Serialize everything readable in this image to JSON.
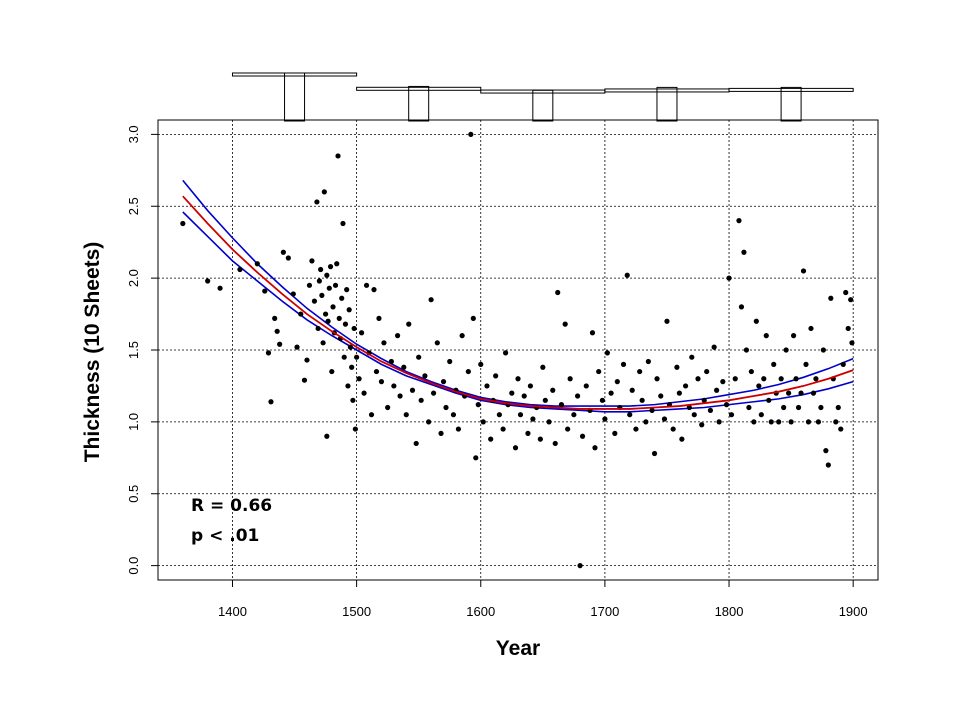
{
  "chart_data": {
    "type": "scatter",
    "xlabel": "Year",
    "ylabel": "Thickness (10 Sheets)",
    "xlim": [
      1340,
      1920
    ],
    "ylim": [
      -0.1,
      3.1
    ],
    "x_ticks": [
      1400,
      1500,
      1600,
      1700,
      1800,
      1900
    ],
    "y_ticks": [
      0.0,
      0.5,
      1.0,
      1.5,
      2.0,
      2.5,
      3.0
    ],
    "y_tick_labels": [
      "0.0",
      "0.5",
      "1.0",
      "1.5",
      "2.0",
      "2.5",
      "3.0"
    ],
    "grid": true,
    "annotations": [
      "R = 0.66",
      "p < .01"
    ],
    "point_color": "#000000",
    "fit_color": "#cc0000",
    "ci_color": "#0000cc",
    "fit_line": {
      "x": [
        1360,
        1380,
        1400,
        1420,
        1440,
        1460,
        1480,
        1500,
        1520,
        1540,
        1560,
        1580,
        1600,
        1620,
        1640,
        1660,
        1680,
        1700,
        1720,
        1740,
        1760,
        1780,
        1800,
        1820,
        1840,
        1860,
        1880,
        1900
      ],
      "y": [
        2.57,
        2.38,
        2.2,
        2.04,
        1.89,
        1.75,
        1.63,
        1.52,
        1.42,
        1.34,
        1.27,
        1.21,
        1.16,
        1.13,
        1.11,
        1.1,
        1.09,
        1.09,
        1.09,
        1.1,
        1.11,
        1.13,
        1.15,
        1.18,
        1.21,
        1.25,
        1.3,
        1.36
      ]
    },
    "ci_upper": {
      "x": [
        1360,
        1380,
        1400,
        1420,
        1440,
        1460,
        1480,
        1500,
        1520,
        1540,
        1560,
        1580,
        1600,
        1620,
        1640,
        1660,
        1680,
        1700,
        1720,
        1740,
        1760,
        1780,
        1800,
        1820,
        1840,
        1860,
        1880,
        1900
      ],
      "y": [
        2.68,
        2.47,
        2.28,
        2.1,
        1.94,
        1.79,
        1.66,
        1.54,
        1.44,
        1.35,
        1.28,
        1.22,
        1.17,
        1.14,
        1.12,
        1.11,
        1.11,
        1.11,
        1.11,
        1.12,
        1.14,
        1.16,
        1.19,
        1.22,
        1.26,
        1.31,
        1.37,
        1.44
      ]
    },
    "ci_lower": {
      "x": [
        1360,
        1380,
        1400,
        1420,
        1440,
        1460,
        1480,
        1500,
        1520,
        1540,
        1560,
        1580,
        1600,
        1620,
        1640,
        1660,
        1680,
        1700,
        1720,
        1740,
        1760,
        1780,
        1800,
        1820,
        1840,
        1860,
        1880,
        1900
      ],
      "y": [
        2.46,
        2.29,
        2.12,
        1.98,
        1.84,
        1.71,
        1.6,
        1.5,
        1.4,
        1.32,
        1.26,
        1.2,
        1.15,
        1.12,
        1.1,
        1.09,
        1.08,
        1.07,
        1.07,
        1.08,
        1.09,
        1.1,
        1.12,
        1.14,
        1.16,
        1.19,
        1.23,
        1.28
      ]
    },
    "top_bins": {
      "comment_free": true,
      "edges": [
        [
          1400,
          1500
        ],
        [
          1500,
          1600
        ],
        [
          1600,
          1700
        ],
        [
          1700,
          1800
        ],
        [
          1800,
          1900
        ]
      ],
      "centers": [
        1450,
        1550,
        1650,
        1750,
        1850
      ],
      "level": [
        1.0,
        0.74,
        0.69,
        0.71,
        0.72
      ],
      "bar_height": [
        1.0,
        0.72,
        0.64,
        0.7,
        0.7
      ]
    },
    "points": [
      [
        1360,
        2.38
      ],
      [
        1380,
        1.98
      ],
      [
        1390,
        1.93
      ],
      [
        1406,
        2.06
      ],
      [
        1420,
        2.1
      ],
      [
        1426,
        1.91
      ],
      [
        1429,
        1.48
      ],
      [
        1431,
        1.14
      ],
      [
        1434,
        1.72
      ],
      [
        1436,
        1.63
      ],
      [
        1438,
        1.54
      ],
      [
        1441,
        2.18
      ],
      [
        1445,
        2.14
      ],
      [
        1449,
        1.89
      ],
      [
        1452,
        1.52
      ],
      [
        1455,
        1.75
      ],
      [
        1458,
        1.29
      ],
      [
        1460,
        1.43
      ],
      [
        1462,
        1.95
      ],
      [
        1464,
        2.12
      ],
      [
        1466,
        1.84
      ],
      [
        1468,
        2.53
      ],
      [
        1469,
        1.65
      ],
      [
        1470,
        1.98
      ],
      [
        1471,
        2.06
      ],
      [
        1472,
        1.88
      ],
      [
        1473,
        1.55
      ],
      [
        1474,
        2.6
      ],
      [
        1475,
        1.75
      ],
      [
        1476,
        2.02
      ],
      [
        1476,
        0.9
      ],
      [
        1477,
        1.7
      ],
      [
        1478,
        1.93
      ],
      [
        1479,
        2.08
      ],
      [
        1480,
        1.35
      ],
      [
        1481,
        1.8
      ],
      [
        1482,
        1.62
      ],
      [
        1483,
        1.95
      ],
      [
        1484,
        2.1
      ],
      [
        1485,
        2.85
      ],
      [
        1486,
        1.72
      ],
      [
        1487,
        1.58
      ],
      [
        1488,
        1.86
      ],
      [
        1489,
        2.38
      ],
      [
        1490,
        1.45
      ],
      [
        1491,
        1.68
      ],
      [
        1492,
        1.92
      ],
      [
        1493,
        1.25
      ],
      [
        1494,
        1.78
      ],
      [
        1495,
        1.52
      ],
      [
        1496,
        1.38
      ],
      [
        1497,
        1.15
      ],
      [
        1498,
        1.65
      ],
      [
        1499,
        0.95
      ],
      [
        1500,
        1.45
      ],
      [
        1502,
        1.3
      ],
      [
        1504,
        1.62
      ],
      [
        1506,
        1.2
      ],
      [
        1508,
        1.95
      ],
      [
        1510,
        1.48
      ],
      [
        1512,
        1.05
      ],
      [
        1514,
        1.92
      ],
      [
        1516,
        1.35
      ],
      [
        1518,
        1.72
      ],
      [
        1520,
        1.28
      ],
      [
        1522,
        1.55
      ],
      [
        1525,
        1.1
      ],
      [
        1528,
        1.42
      ],
      [
        1530,
        1.25
      ],
      [
        1533,
        1.6
      ],
      [
        1535,
        1.18
      ],
      [
        1538,
        1.38
      ],
      [
        1540,
        1.05
      ],
      [
        1542,
        1.68
      ],
      [
        1545,
        1.22
      ],
      [
        1548,
        0.85
      ],
      [
        1550,
        1.45
      ],
      [
        1552,
        1.15
      ],
      [
        1555,
        1.32
      ],
      [
        1558,
        1.0
      ],
      [
        1560,
        1.85
      ],
      [
        1562,
        1.2
      ],
      [
        1565,
        1.55
      ],
      [
        1568,
        0.92
      ],
      [
        1570,
        1.28
      ],
      [
        1572,
        1.1
      ],
      [
        1575,
        1.42
      ],
      [
        1578,
        1.05
      ],
      [
        1580,
        1.22
      ],
      [
        1582,
        0.95
      ],
      [
        1585,
        1.6
      ],
      [
        1587,
        1.18
      ],
      [
        1590,
        1.35
      ],
      [
        1592,
        3.0
      ],
      [
        1594,
        1.72
      ],
      [
        1596,
        0.75
      ],
      [
        1598,
        1.12
      ],
      [
        1600,
        1.4
      ],
      [
        1602,
        1.0
      ],
      [
        1605,
        1.25
      ],
      [
        1608,
        0.88
      ],
      [
        1610,
        1.15
      ],
      [
        1612,
        1.32
      ],
      [
        1615,
        1.05
      ],
      [
        1618,
        0.95
      ],
      [
        1620,
        1.48
      ],
      [
        1622,
        1.12
      ],
      [
        1625,
        1.2
      ],
      [
        1628,
        0.82
      ],
      [
        1630,
        1.3
      ],
      [
        1632,
        1.05
      ],
      [
        1635,
        1.18
      ],
      [
        1638,
        0.92
      ],
      [
        1640,
        1.25
      ],
      [
        1642,
        1.02
      ],
      [
        1645,
        1.1
      ],
      [
        1648,
        0.88
      ],
      [
        1650,
        1.38
      ],
      [
        1652,
        1.15
      ],
      [
        1655,
        1.0
      ],
      [
        1658,
        1.22
      ],
      [
        1660,
        0.85
      ],
      [
        1662,
        1.9
      ],
      [
        1665,
        1.12
      ],
      [
        1668,
        1.68
      ],
      [
        1670,
        0.95
      ],
      [
        1672,
        1.3
      ],
      [
        1675,
        1.05
      ],
      [
        1678,
        1.18
      ],
      [
        1680,
        0.0
      ],
      [
        1682,
        0.9
      ],
      [
        1685,
        1.25
      ],
      [
        1688,
        1.08
      ],
      [
        1690,
        1.62
      ],
      [
        1692,
        0.82
      ],
      [
        1695,
        1.35
      ],
      [
        1698,
        1.15
      ],
      [
        1700,
        1.02
      ],
      [
        1702,
        1.48
      ],
      [
        1705,
        1.2
      ],
      [
        1708,
        0.92
      ],
      [
        1710,
        1.28
      ],
      [
        1712,
        1.1
      ],
      [
        1715,
        1.4
      ],
      [
        1718,
        2.02
      ],
      [
        1720,
        1.05
      ],
      [
        1722,
        1.22
      ],
      [
        1725,
        0.95
      ],
      [
        1728,
        1.35
      ],
      [
        1730,
        1.15
      ],
      [
        1733,
        1.0
      ],
      [
        1735,
        1.42
      ],
      [
        1738,
        1.08
      ],
      [
        1740,
        0.78
      ],
      [
        1742,
        1.3
      ],
      [
        1745,
        1.18
      ],
      [
        1748,
        1.02
      ],
      [
        1750,
        1.7
      ],
      [
        1752,
        1.12
      ],
      [
        1755,
        0.95
      ],
      [
        1758,
        1.38
      ],
      [
        1760,
        1.2
      ],
      [
        1762,
        0.88
      ],
      [
        1765,
        1.25
      ],
      [
        1768,
        1.1
      ],
      [
        1770,
        1.45
      ],
      [
        1772,
        1.05
      ],
      [
        1775,
        1.3
      ],
      [
        1778,
        0.98
      ],
      [
        1780,
        1.15
      ],
      [
        1782,
        1.35
      ],
      [
        1785,
        1.08
      ],
      [
        1788,
        1.52
      ],
      [
        1790,
        1.22
      ],
      [
        1792,
        1.0
      ],
      [
        1795,
        1.28
      ],
      [
        1798,
        1.12
      ],
      [
        1800,
        2.0
      ],
      [
        1802,
        1.05
      ],
      [
        1805,
        1.3
      ],
      [
        1808,
        2.4
      ],
      [
        1810,
        1.8
      ],
      [
        1812,
        2.18
      ],
      [
        1814,
        1.5
      ],
      [
        1816,
        1.1
      ],
      [
        1818,
        1.35
      ],
      [
        1820,
        1.0
      ],
      [
        1822,
        1.7
      ],
      [
        1824,
        1.25
      ],
      [
        1826,
        1.05
      ],
      [
        1828,
        1.3
      ],
      [
        1830,
        1.6
      ],
      [
        1832,
        1.15
      ],
      [
        1834,
        1.0
      ],
      [
        1836,
        1.4
      ],
      [
        1838,
        1.2
      ],
      [
        1840,
        1.0
      ],
      [
        1842,
        1.3
      ],
      [
        1844,
        1.1
      ],
      [
        1846,
        1.5
      ],
      [
        1848,
        1.2
      ],
      [
        1850,
        1.0
      ],
      [
        1852,
        1.6
      ],
      [
        1854,
        1.3
      ],
      [
        1856,
        1.1
      ],
      [
        1858,
        1.2
      ],
      [
        1860,
        2.05
      ],
      [
        1862,
        1.4
      ],
      [
        1864,
        1.0
      ],
      [
        1866,
        1.65
      ],
      [
        1868,
        1.2
      ],
      [
        1870,
        1.3
      ],
      [
        1872,
        1.0
      ],
      [
        1874,
        1.1
      ],
      [
        1876,
        1.5
      ],
      [
        1878,
        0.8
      ],
      [
        1880,
        0.7
      ],
      [
        1882,
        1.86
      ],
      [
        1884,
        1.3
      ],
      [
        1886,
        1.0
      ],
      [
        1888,
        1.1
      ],
      [
        1890,
        0.95
      ],
      [
        1892,
        1.4
      ],
      [
        1894,
        1.9
      ],
      [
        1896,
        1.65
      ],
      [
        1898,
        1.85
      ],
      [
        1899,
        1.55
      ]
    ]
  }
}
